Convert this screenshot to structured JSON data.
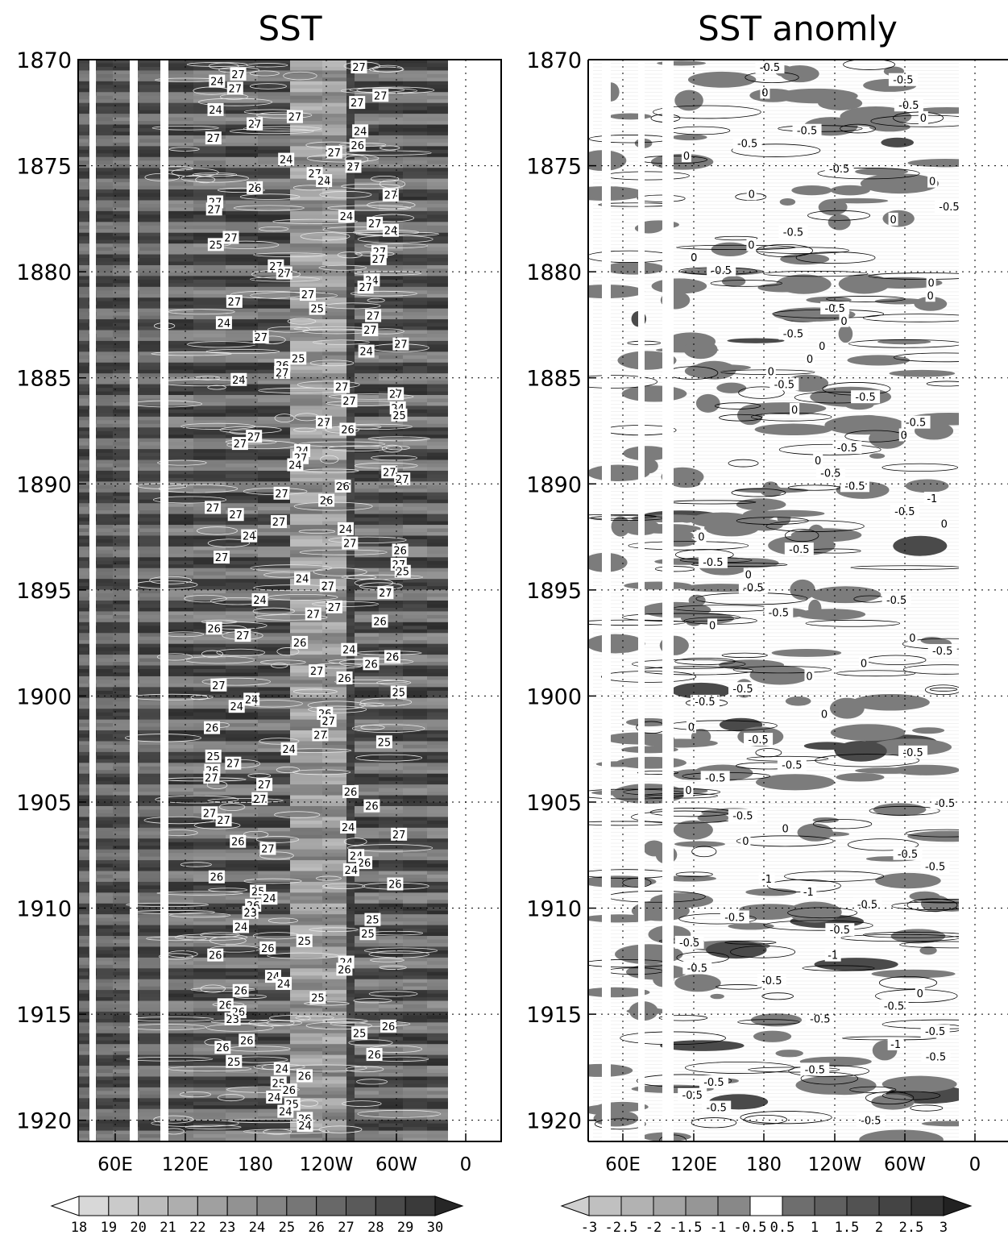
{
  "chart_data": [
    {
      "type": "heatmap",
      "title": "SST",
      "x_tick_labels": [
        "60E",
        "120E",
        "180",
        "120W",
        "60W",
        "0"
      ],
      "y_tick_labels": [
        "1870",
        "1875",
        "1880",
        "1885",
        "1890",
        "1895",
        "1900",
        "1905",
        "1910",
        "1915",
        "1920"
      ],
      "ylim": [
        1870,
        1921
      ],
      "colorbar_levels": [
        "18",
        "19",
        "20",
        "21",
        "22",
        "23",
        "24",
        "25",
        "26",
        "27",
        "28",
        "29",
        "30"
      ],
      "colorbar_colors": [
        "#ffffff",
        "#d8d8d8",
        "#cacaca",
        "#bcbcbc",
        "#aeaeae",
        "#a0a0a0",
        "#929292",
        "#848484",
        "#767676",
        "#686868",
        "#5a5a5a",
        "#4a4a4a",
        "#3a3a3a",
        "#262626"
      ],
      "contour_labels": [
        "27",
        "27",
        "24",
        "27",
        "27",
        "27",
        "24",
        "27",
        "27",
        "24",
        "27",
        "26",
        "27",
        "24",
        "27",
        "27",
        "24",
        "26",
        "27",
        "27",
        "27",
        "24",
        "27",
        "24",
        "27",
        "25",
        "27",
        "27",
        "27",
        "27",
        "24",
        "27",
        "27",
        "27",
        "25",
        "27",
        "24",
        "27",
        "27",
        "27",
        "24",
        "25",
        "26",
        "27",
        "24",
        "27",
        "27",
        "27",
        "24",
        "25",
        "27",
        "26",
        "27",
        "27",
        "24",
        "27",
        "24",
        "27",
        "27",
        "26",
        "27",
        "26",
        "27",
        "27",
        "27",
        "24",
        "24",
        "27",
        "26",
        "27",
        "27",
        "25",
        "24",
        "27",
        "27",
        "24",
        "27",
        "27",
        "26",
        "26",
        "27",
        "26",
        "24",
        "26",
        "26",
        "27",
        "26",
        "27",
        "25",
        "24",
        "24",
        "26",
        "27",
        "26",
        "27",
        "25",
        "24",
        "25",
        "27",
        "26",
        "27",
        "27",
        "26",
        "27",
        "26",
        "27",
        "27",
        "24",
        "27",
        "26",
        "27",
        "24",
        "26",
        "24",
        "26",
        "26",
        "25",
        "24",
        "26",
        "23",
        "25",
        "24",
        "25",
        "25",
        "26",
        "26",
        "24",
        "26",
        "24",
        "24",
        "26",
        "25",
        "26",
        "26",
        "23",
        "26",
        "25",
        "26",
        "26",
        "26",
        "25",
        "24",
        "26",
        "25",
        "26",
        "24",
        "25",
        "24",
        "26",
        "24"
      ]
    },
    {
      "type": "heatmap",
      "title": "SST anomly",
      "x_tick_labels": [
        "60E",
        "120E",
        "180",
        "120W",
        "60W",
        "0"
      ],
      "y_tick_labels": [
        "1870",
        "1875",
        "1880",
        "1885",
        "1890",
        "1895",
        "1900",
        "1905",
        "1910",
        "1915",
        "1920"
      ],
      "ylim": [
        1870,
        1921
      ],
      "colorbar_levels": [
        "-3",
        "-2.5",
        "-2",
        "-1.5",
        "-1",
        "-0.5",
        "0.5",
        "1",
        "1.5",
        "2",
        "2.5",
        "3"
      ],
      "colorbar_colors": [
        "#cfcfcf",
        "#c0c0c0",
        "#b2b2b2",
        "#a4a4a4",
        "#969696",
        "#888888",
        "#ffffff",
        "#6e6e6e",
        "#606060",
        "#525252",
        "#444444",
        "#343434",
        "#222222"
      ],
      "contour_labels": [
        "-0.5",
        "-0.5",
        "0",
        "-0.5",
        "0",
        "-0.5",
        "-0.5",
        "0",
        "-0.5",
        "0",
        "0",
        "-0.5",
        "0",
        "-0.5",
        "0",
        "0",
        "-0.5",
        "0",
        "0",
        "-0.5",
        "0",
        "-0.5",
        "0",
        "0",
        "0",
        "-0.5",
        "-0.5",
        "0",
        "-0.5",
        "0",
        "-0.5",
        "0",
        "-0.5",
        "-0.5",
        "-1",
        "-0.5",
        "0",
        "0",
        "-0.5",
        "-0.5",
        "0",
        "-0.5",
        "-0.5",
        "-0.5",
        "0",
        "0",
        "-0.5",
        "0",
        "0",
        "-0.5",
        "-0.5",
        "0",
        "0",
        "-0.5",
        "-0.5",
        "-0.5",
        "-0.5",
        "0",
        "-0.5",
        "-0.5",
        "0",
        "0",
        "-0.5",
        "-0.5",
        "-1",
        "-1",
        "-0.5",
        "-0.5",
        "-0.5",
        "-0.5",
        "-1",
        "-0.5",
        "-0.5",
        "0",
        "-0.5",
        "-0.5",
        "-0.5",
        "-1",
        "-0.5",
        "-0.5",
        "-0.5",
        "-0.5",
        "-0.5",
        "-0.5"
      ]
    }
  ]
}
